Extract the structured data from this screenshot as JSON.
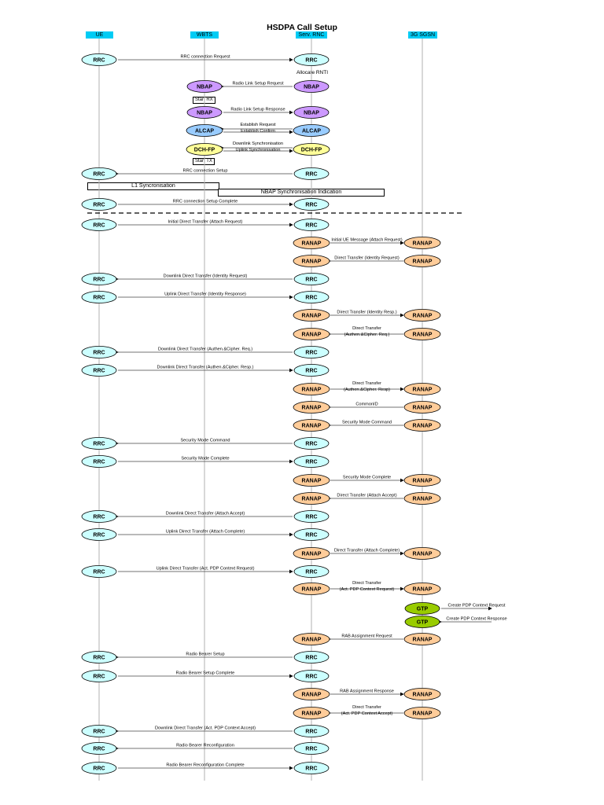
{
  "title": "HSDPA Call Setup",
  "entities": [
    {
      "label": "UE"
    },
    {
      "label": "WBTS"
    },
    {
      "label": "Serv. RNC"
    },
    {
      "label": "3G SGSN"
    }
  ],
  "notes": {
    "allocate_rnti": "Allocate RNTI",
    "start_rx": "Start RX",
    "start_tx": "Start TX",
    "l1_sync": "L1 Syncronisation",
    "nbap_sync": "NBAP Synchronisation Indication"
  },
  "colors": {
    "rrc": "#ccffff",
    "nbap": "#cc99ff",
    "alcap": "#99ccff",
    "dchfp": "#ffff99",
    "ranap": "#ffcc99",
    "gtp": "#99cc00",
    "header": "#00ccf5"
  },
  "messages": [
    {
      "from": 0,
      "to": 2,
      "left": "RRC",
      "right": "RRC",
      "ltype": "rrc",
      "rtype": "rrc",
      "label": [
        "RRC connection Request"
      ],
      "dir": "right"
    },
    {
      "from": 1,
      "to": 2,
      "left": "NBAP",
      "right": "NBAP",
      "ltype": "nbap",
      "rtype": "nbap",
      "label": [
        "Radio Link Setup Request"
      ],
      "dir": "left"
    },
    {
      "from": 1,
      "to": 2,
      "left": "NBAP",
      "right": "NBAP",
      "ltype": "nbap",
      "rtype": "nbap",
      "label": [
        "Radio Link Setup Response"
      ],
      "dir": "right"
    },
    {
      "from": 1,
      "to": 2,
      "left": "ALCAP",
      "right": "ALCAP",
      "ltype": "alcap",
      "rtype": "alcap",
      "label": [
        "Establish Request",
        "Establish Confirm"
      ],
      "dir": "both"
    },
    {
      "from": 1,
      "to": 2,
      "left": "DCH-FP",
      "right": "DCH-FP",
      "ltype": "dchfp",
      "rtype": "dchfp",
      "label": [
        "Downlink Synchronisation",
        "Uplink Synchronisation"
      ],
      "dir": "both"
    },
    {
      "from": 0,
      "to": 2,
      "left": "RRC",
      "right": "RRC",
      "ltype": "rrc",
      "rtype": "rrc",
      "label": [
        "RRC connection Setup"
      ],
      "dir": "left"
    },
    {
      "from": 0,
      "to": 2,
      "left": "RRC",
      "right": "RRC",
      "ltype": "rrc",
      "rtype": "rrc",
      "label": [
        "RRC connection Setup Complete"
      ],
      "dir": "right"
    },
    {
      "from": 0,
      "to": 2,
      "left": "RRC",
      "right": "RRC",
      "ltype": "rrc",
      "rtype": "rrc",
      "label": [
        "Initial Direct Transfer (Attach Request)"
      ],
      "dir": "right"
    },
    {
      "from": 2,
      "to": 3,
      "left": "RANAP",
      "right": "RANAP",
      "ltype": "ranap",
      "rtype": "ranap",
      "label": [
        "Initial UE Message (Attach Request)"
      ],
      "dir": "right"
    },
    {
      "from": 2,
      "to": 3,
      "left": "RANAP",
      "right": "RANAP",
      "ltype": "ranap",
      "rtype": "ranap",
      "label": [
        "Direct Transfer (Identity Request)"
      ],
      "dir": "left"
    },
    {
      "from": 0,
      "to": 2,
      "left": "RRC",
      "right": "RRC",
      "ltype": "rrc",
      "rtype": "rrc",
      "label": [
        "Downlink Direct Transfer (Identity Request)"
      ],
      "dir": "left"
    },
    {
      "from": 0,
      "to": 2,
      "left": "RRC",
      "right": "RRC",
      "ltype": "rrc",
      "rtype": "rrc",
      "label": [
        "Uplink Direct Transfer (Identity Response)"
      ],
      "dir": "right"
    },
    {
      "from": 2,
      "to": 3,
      "left": "RANAP",
      "right": "RANAP",
      "ltype": "ranap",
      "rtype": "ranap",
      "label": [
        "Direct Transfer (Identity Resp.)"
      ],
      "dir": "right"
    },
    {
      "from": 2,
      "to": 3,
      "left": "RANAP",
      "right": "RANAP",
      "ltype": "ranap",
      "rtype": "ranap",
      "label": [
        "Direct Transfer",
        "(Authen.&Cipher. Req.)"
      ],
      "dir": "left"
    },
    {
      "from": 0,
      "to": 2,
      "left": "RRC",
      "right": "RRC",
      "ltype": "rrc",
      "rtype": "rrc",
      "label": [
        "Downlink Direct Transfer (Authen.&Cipher. Req.)"
      ],
      "dir": "left"
    },
    {
      "from": 0,
      "to": 2,
      "left": "RRC",
      "right": "RRC",
      "ltype": "rrc",
      "rtype": "rrc",
      "label": [
        "Downlink Direct Transfer (Authen.&Cipher. Resp.)"
      ],
      "dir": "right"
    },
    {
      "from": 2,
      "to": 3,
      "left": "RANAP",
      "right": "RANAP",
      "ltype": "ranap",
      "rtype": "ranap",
      "label": [
        "Direct Transfer",
        "(Authen.&Cipher. Resp)"
      ],
      "dir": "right"
    },
    {
      "from": 2,
      "to": 3,
      "left": "RANAP",
      "right": "RANAP",
      "ltype": "ranap",
      "rtype": "ranap",
      "label": [
        "CommonID"
      ],
      "dir": "left"
    },
    {
      "from": 2,
      "to": 3,
      "left": "RANAP",
      "right": "RANAP",
      "ltype": "ranap",
      "rtype": "ranap",
      "label": [
        "Security Mode Command"
      ],
      "dir": "left"
    },
    {
      "from": 0,
      "to": 2,
      "left": "RRC",
      "right": "RRC",
      "ltype": "rrc",
      "rtype": "rrc",
      "label": [
        "Security Mode Command"
      ],
      "dir": "left"
    },
    {
      "from": 0,
      "to": 2,
      "left": "RRC",
      "right": "RRC",
      "ltype": "rrc",
      "rtype": "rrc",
      "label": [
        "Security Mode Complete"
      ],
      "dir": "right"
    },
    {
      "from": 2,
      "to": 3,
      "left": "RANAP",
      "right": "RANAP",
      "ltype": "ranap",
      "rtype": "ranap",
      "label": [
        "Security Mode Complete"
      ],
      "dir": "right"
    },
    {
      "from": 2,
      "to": 3,
      "left": "RANAP",
      "right": "RANAP",
      "ltype": "ranap",
      "rtype": "ranap",
      "label": [
        "Direct Transfer (Attach Accept)"
      ],
      "dir": "left"
    },
    {
      "from": 0,
      "to": 2,
      "left": "RRC",
      "right": "RRC",
      "ltype": "rrc",
      "rtype": "rrc",
      "label": [
        "Downlink Direct Transfer (Attach Accept)"
      ],
      "dir": "left"
    },
    {
      "from": 0,
      "to": 2,
      "left": "RRC",
      "right": "RRC",
      "ltype": "rrc",
      "rtype": "rrc",
      "label": [
        "Uplink Direct Transfer (Attach Complete)"
      ],
      "dir": "right"
    },
    {
      "from": 2,
      "to": 3,
      "left": "RANAP",
      "right": "RANAP",
      "ltype": "ranap",
      "rtype": "ranap",
      "label": [
        "Direct Transfer (Attach Complete)"
      ],
      "dir": "right"
    },
    {
      "from": 0,
      "to": 2,
      "left": "RRC",
      "right": "RRC",
      "ltype": "rrc",
      "rtype": "rrc",
      "label": [
        "Uplink Direct Transfer (Act. PDP Context Request)"
      ],
      "dir": "right"
    },
    {
      "from": 2,
      "to": 3,
      "left": "RANAP",
      "right": "RANAP",
      "ltype": "ranap",
      "rtype": "ranap",
      "label": [
        "Direct Transfer",
        "(Act. PDP Context Request)"
      ],
      "dir": "right"
    },
    {
      "from": 3,
      "to": 4,
      "left": "GTP",
      "right": "",
      "ltype": "gtp",
      "rtype": "",
      "label": [
        "Create PDP Context Request"
      ],
      "dir": "right"
    },
    {
      "from": 3,
      "to": 4,
      "left": "GTP",
      "right": "",
      "ltype": "gtp",
      "rtype": "",
      "label": [
        "Create PDP Context Response"
      ],
      "dir": "left"
    },
    {
      "from": 2,
      "to": 3,
      "left": "RANAP",
      "right": "RANAP",
      "ltype": "ranap",
      "rtype": "ranap",
      "label": [
        "RAB Assignment Request"
      ],
      "dir": "left"
    },
    {
      "from": 0,
      "to": 2,
      "left": "RRC",
      "right": "RRC",
      "ltype": "rrc",
      "rtype": "rrc",
      "label": [
        "Radio Bearer Setup"
      ],
      "dir": "left"
    },
    {
      "from": 0,
      "to": 2,
      "left": "RRC",
      "right": "RRC",
      "ltype": "rrc",
      "rtype": "rrc",
      "label": [
        "Radio Bearer Setup Complete"
      ],
      "dir": "right"
    },
    {
      "from": 2,
      "to": 3,
      "left": "RANAP",
      "right": "RANAP",
      "ltype": "ranap",
      "rtype": "ranap",
      "label": [
        "RAB Assignment Response"
      ],
      "dir": "right"
    },
    {
      "from": 2,
      "to": 3,
      "left": "RANAP",
      "right": "RANAP",
      "ltype": "ranap",
      "rtype": "ranap",
      "label": [
        "Direct Transfer",
        "(Act. PDP Context Accept)"
      ],
      "dir": "left"
    },
    {
      "from": 0,
      "to": 2,
      "left": "RRC",
      "right": "RRC",
      "ltype": "rrc",
      "rtype": "rrc",
      "label": [
        "Downlink Direct Transfer (Act. PDP Context Accept)"
      ],
      "dir": "left"
    },
    {
      "from": 0,
      "to": 2,
      "left": "RRC",
      "right": "RRC",
      "ltype": "rrc",
      "rtype": "rrc",
      "label": [
        "Radio Bearer Reconfiguration"
      ],
      "dir": "left"
    },
    {
      "from": 0,
      "to": 2,
      "left": "RRC",
      "right": "RRC",
      "ltype": "rrc",
      "rtype": "rrc",
      "label": [
        "Radio Bearer Reconfiguration Complete"
      ],
      "dir": "right"
    }
  ]
}
